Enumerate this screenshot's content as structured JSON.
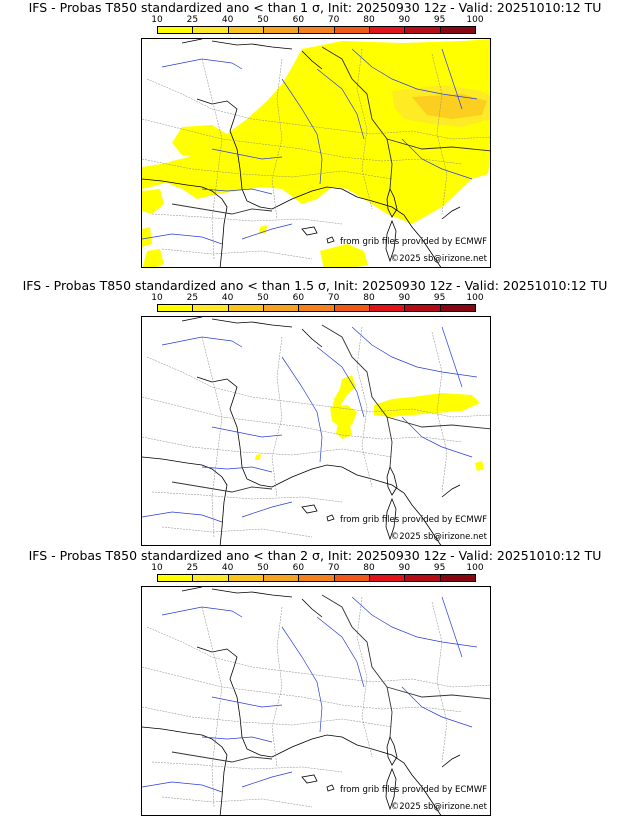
{
  "colorbar": {
    "ticks": [
      "10",
      "25",
      "40",
      "50",
      "60",
      "70",
      "80",
      "90",
      "95",
      "100"
    ],
    "colors": [
      "#ffff00",
      "#fde92a",
      "#f9c41e",
      "#f6a323",
      "#f58220",
      "#ef5a1b",
      "#e0151b",
      "#b50d17",
      "#870812"
    ]
  },
  "panels": [
    {
      "title": "IFS - Probas T850  standardized ano < than 1 σ, Init: 20250930 12z - Valid: 20251010:12 TU",
      "source_credit": "from grib files provided by ECMWF",
      "copyright": "©2025 sb@irizone.net"
    },
    {
      "title": "IFS - Probas T850  standardized ano < than 1.5 σ, Init: 20250930 12z - Valid: 20251010:12 TU",
      "source_credit": "from grib files provided by ECMWF",
      "copyright": "©2025 sb@irizone.net"
    },
    {
      "title": "IFS - Probas T850  standardized ano < than 2 σ, Init: 20250930 12z - Valid: 20251010:12 TU",
      "source_credit": "from grib files provided by ECMWF",
      "copyright": "©2025 sb@irizone.net"
    }
  ]
}
